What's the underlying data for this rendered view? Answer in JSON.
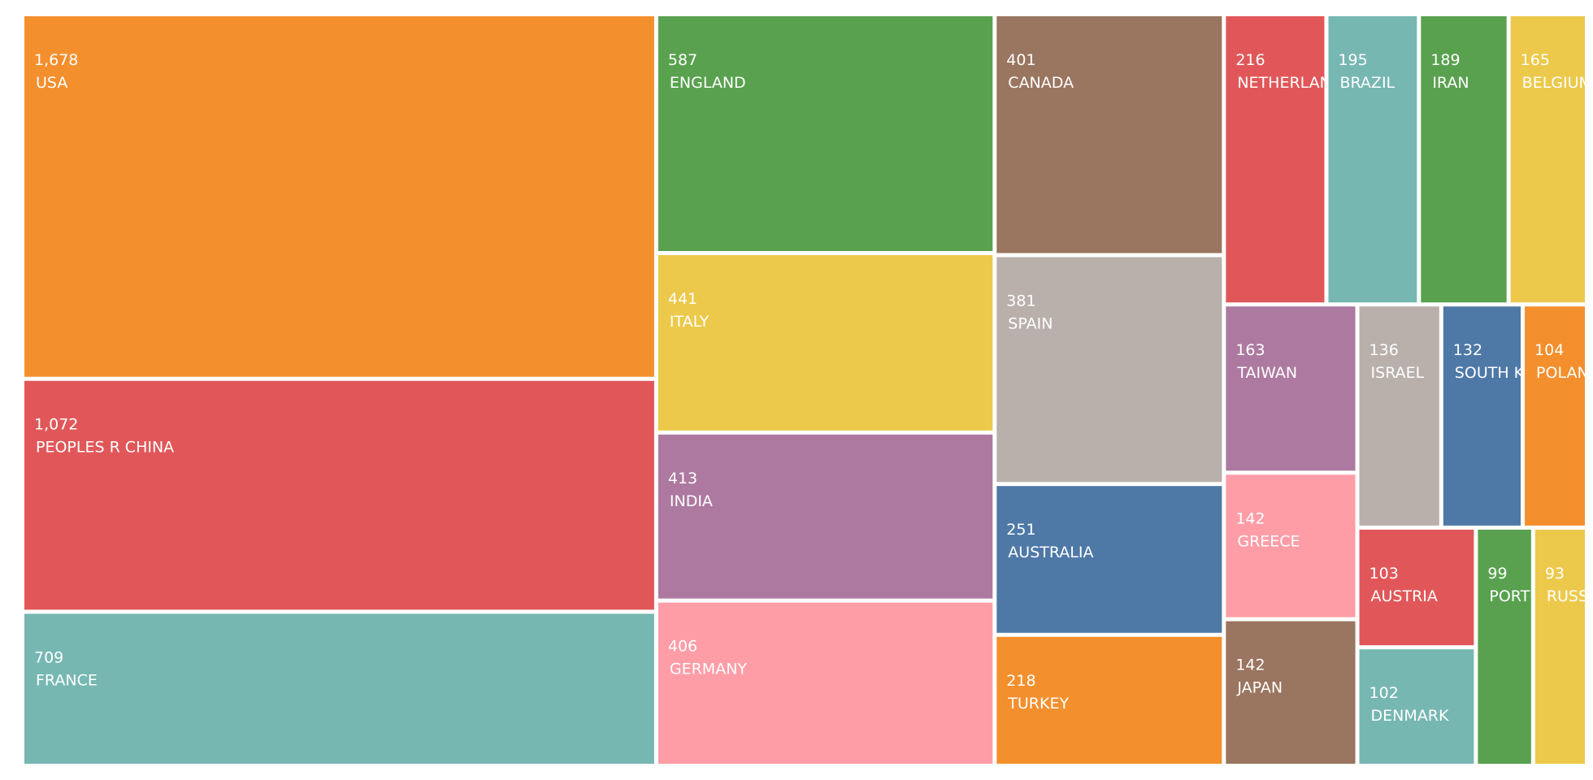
{
  "chart_data": {
    "type": "treemap",
    "categories": [
      "USA",
      "PEOPLES R CHINA",
      "FRANCE",
      "ENGLAND",
      "ITALY",
      "INDIA",
      "GERMANY",
      "CANADA",
      "SPAIN",
      "AUSTRALIA",
      "TURKEY",
      "NETHERLANDS",
      "BRAZIL",
      "IRAN",
      "BELGIUM",
      "TAIWAN",
      "GREECE",
      "JAPAN",
      "ISRAEL",
      "SOUTH KOREA",
      "POLAND",
      "AUSTRIA",
      "DENMARK",
      "PORTUGAL",
      "RUSSIA"
    ],
    "values": [
      1678,
      1072,
      709,
      587,
      441,
      413,
      406,
      401,
      381,
      251,
      218,
      216,
      195,
      189,
      165,
      163,
      142,
      142,
      136,
      132,
      104,
      103,
      102,
      99,
      93
    ],
    "value_labels": [
      "1,678",
      "1,072",
      "709",
      "587",
      "441",
      "413",
      "406",
      "401",
      "381",
      "251",
      "218",
      "216",
      "195",
      "189",
      "165",
      "163",
      "142",
      "142",
      "136",
      "132",
      "104",
      "103",
      "102",
      "99",
      "93"
    ],
    "colors": [
      "#f48f2d",
      "#e15759",
      "#76b7b2",
      "#59a14f",
      "#ecc94b",
      "#ad79a0",
      "#ff9da7",
      "#9a755f",
      "#b9b0ac",
      "#4e79a7",
      "#f48f2d",
      "#e15759",
      "#76b7b2",
      "#59a14f",
      "#ecc94b",
      "#ad79a0",
      "#ff9da7",
      "#9a755f",
      "#b9b0ac",
      "#4e79a7",
      "#f48f2d",
      "#e15759",
      "#76b7b2",
      "#59a14f",
      "#ecc94b"
    ]
  }
}
